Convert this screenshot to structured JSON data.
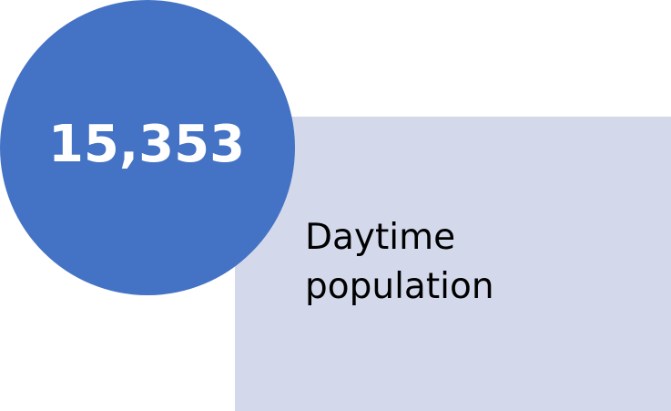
{
  "stat": {
    "value": "15,353",
    "label_line1": "Daytime",
    "label_line2": "population"
  },
  "colors": {
    "circle": "#4472c4",
    "box": "#d3d9eb",
    "value_text": "#ffffff",
    "label_text": "#000000"
  }
}
